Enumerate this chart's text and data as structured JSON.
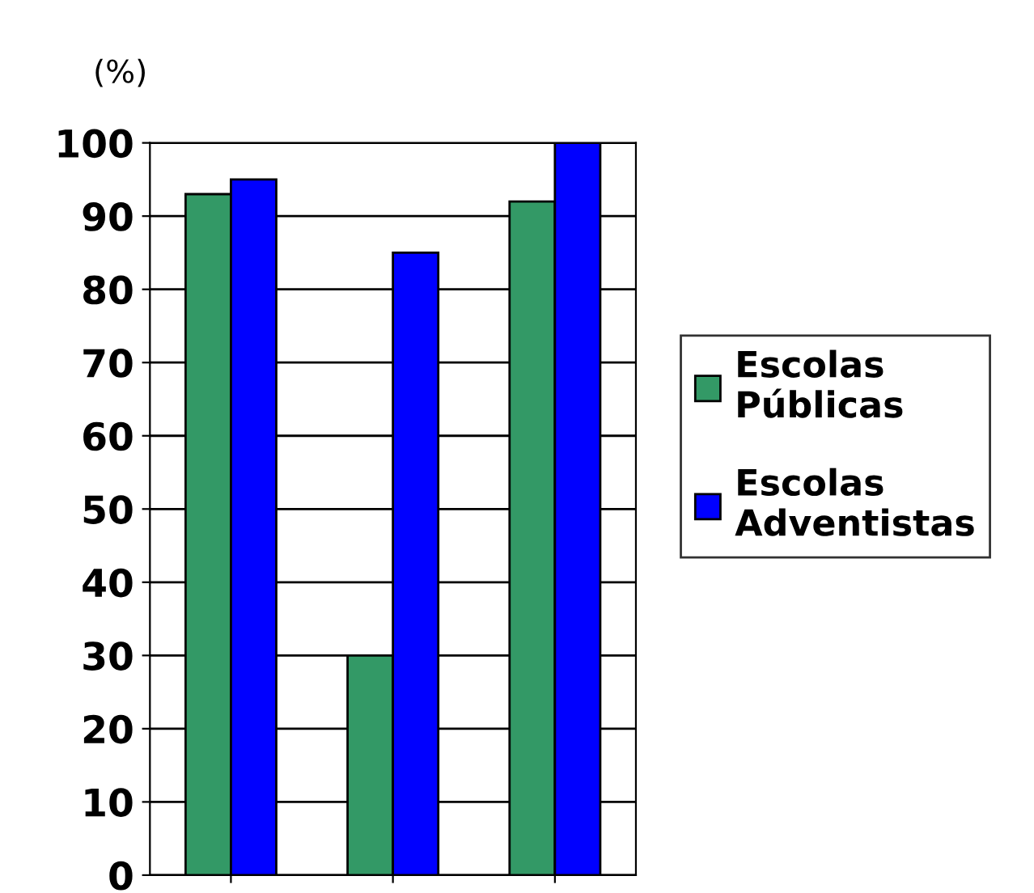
{
  "chart_data": {
    "type": "bar",
    "ylabel": "(%)",
    "categories": [
      null,
      null,
      null
    ],
    "series": [
      {
        "name": "Escolas Públicas",
        "color": "#339966",
        "values": [
          93,
          30,
          92
        ]
      },
      {
        "name": "Escolas Adventistas",
        "color": "#0000ff",
        "values": [
          95,
          85,
          100
        ]
      }
    ],
    "ylim": [
      0,
      100
    ],
    "yticks": [
      0,
      10,
      20,
      30,
      40,
      50,
      60,
      70,
      80,
      90,
      100
    ],
    "grid": "y",
    "legend": "right"
  }
}
